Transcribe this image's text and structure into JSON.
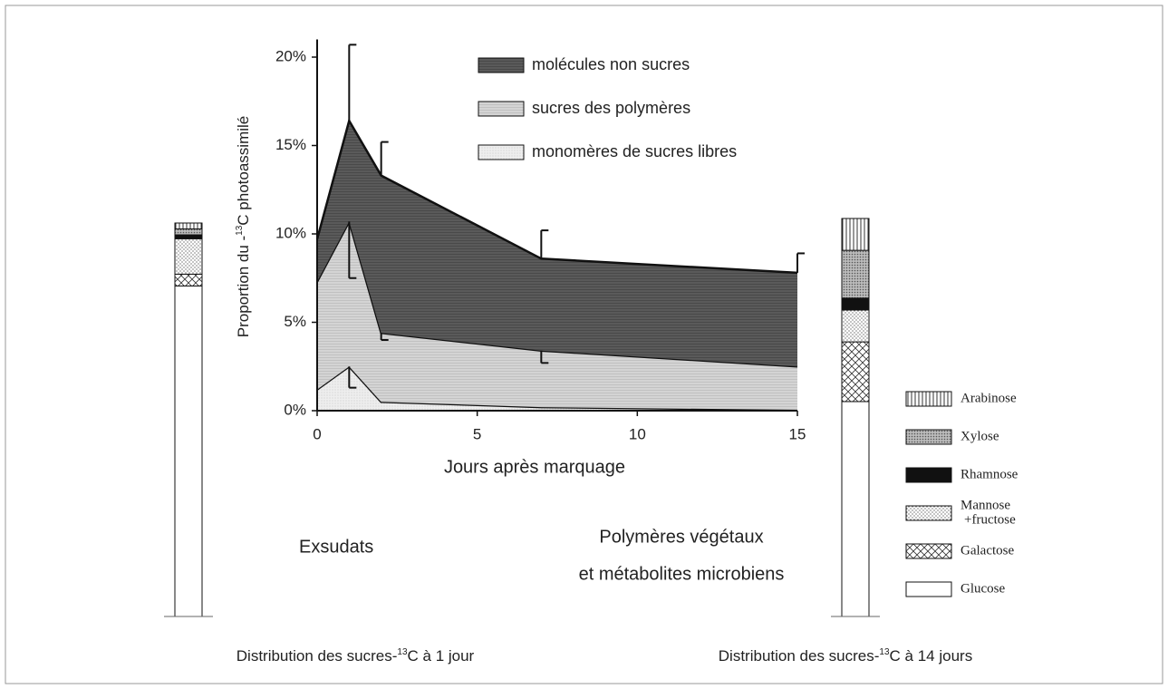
{
  "chart_data": [
    {
      "type": "stacked-area",
      "x": [
        0,
        1,
        2,
        7,
        15
      ],
      "xlim": [
        0,
        15
      ],
      "xticks": [
        0,
        5,
        10,
        15
      ],
      "ylim": [
        0,
        21
      ],
      "yticks": [
        {
          "value": 0,
          "label": "0%"
        },
        {
          "value": 5,
          "label": "5%"
        },
        {
          "value": 10,
          "label": "10%"
        },
        {
          "value": 15,
          "label": "15%"
        },
        {
          "value": 20,
          "label": "20%"
        }
      ],
      "xlabel": "Jours après marquage",
      "ylabel": {
        "prefix": "Proportion du -",
        "sup": "13",
        "suffix": "C photoassimilé"
      },
      "series": [
        {
          "name": "monomères de sucres libres",
          "color": "#e6e6e6",
          "values": [
            1.2,
            2.5,
            0.5,
            0.2,
            0.05
          ],
          "errors": [
            null,
            1.2,
            null,
            null,
            null
          ]
        },
        {
          "name": "sucres des polymères",
          "color": "#cfcfcf",
          "values": [
            6.1,
            8.2,
            3.9,
            3.2,
            2.45
          ],
          "errors": [
            null,
            3.2,
            0.4,
            0.7,
            null
          ]
        },
        {
          "name": "molécules non sucres",
          "color": "#5a5a5a",
          "values": [
            2.4,
            5.7,
            8.9,
            5.2,
            5.3
          ],
          "errors": [
            null,
            4.3,
            1.9,
            1.6,
            1.1
          ]
        }
      ],
      "annotations": [
        "Exsudats",
        "Polymères végétaux",
        "et métabolites microbiens"
      ]
    },
    {
      "type": "stacked-bar",
      "legend": [
        "Glucose",
        "Galactose",
        "Mannose",
        "+fructose",
        "Rhamnose",
        "Xylose",
        "Arabinose"
      ],
      "series": [
        {
          "name": "Glucose",
          "color": "#ffffff"
        },
        {
          "name": "Galactose",
          "color": "#ffffff"
        },
        {
          "name": "Mannose +fructose",
          "color": "#ffffff"
        },
        {
          "name": "Rhamnose",
          "color": "#111111"
        },
        {
          "name": "Xylose",
          "color": "#9a9a9a"
        },
        {
          "name": "Arabinose",
          "color": "#ffffff"
        }
      ],
      "bars": [
        {
          "caption": {
            "prefix": "Distribution des sucres-",
            "sup": "13",
            "suffix": "C à 1 jour"
          },
          "values": [
            84,
            3,
            9,
            1,
            1.5,
            1.5
          ]
        },
        {
          "caption": {
            "prefix": "Distribution des sucres-",
            "sup": "13",
            "suffix": "C à 14 jours"
          },
          "values": [
            54,
            15,
            8,
            3,
            12,
            8
          ]
        }
      ]
    }
  ]
}
